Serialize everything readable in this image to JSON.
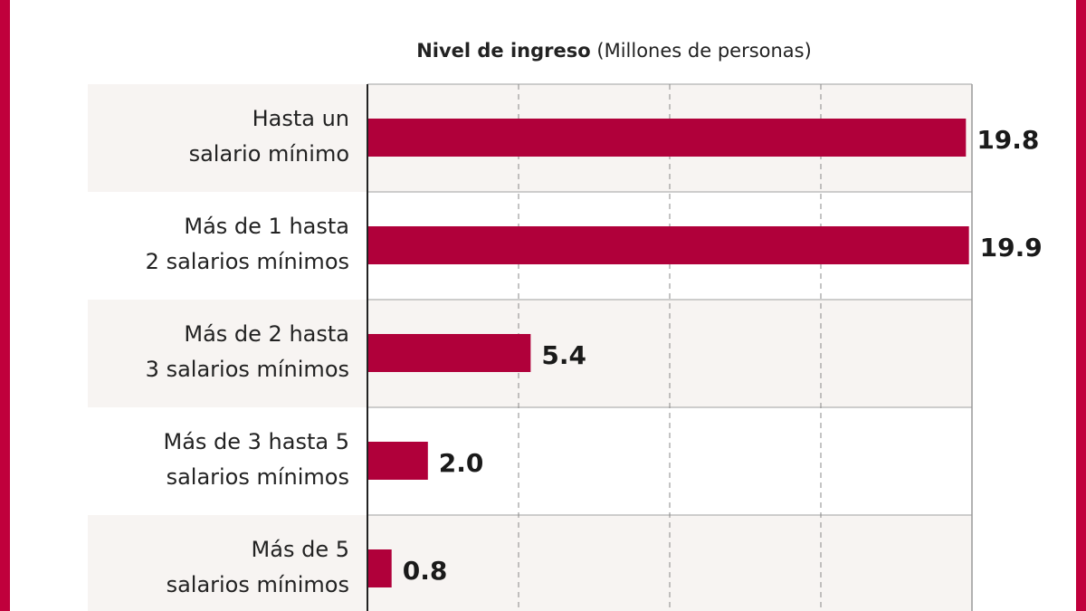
{
  "chart_data": {
    "type": "bar",
    "orientation": "horizontal",
    "title_bold": "Nivel de ingreso",
    "title_rest": "(Millones de personas)",
    "categories": [
      [
        "Hasta un",
        "salario mínimo"
      ],
      [
        "Más de 1 hasta",
        "2 salarios mínimos"
      ],
      [
        "Más de 2 hasta",
        "3 salarios mínimos"
      ],
      [
        "Más de 3 hasta 5",
        "salarios mínimos"
      ],
      [
        "Más de 5",
        "salarios mínimos"
      ]
    ],
    "values": [
      19.8,
      19.9,
      5.4,
      2.0,
      0.8
    ],
    "value_labels": [
      "19.8",
      "19.9",
      "5.4",
      "2.0",
      "0.8"
    ],
    "xlim": [
      0,
      20
    ],
    "grid": "vertical dashed every 5",
    "colors": {
      "bar": "#b0003a",
      "frame": "#c0003c",
      "row_shade": "#f7f4f2"
    }
  }
}
